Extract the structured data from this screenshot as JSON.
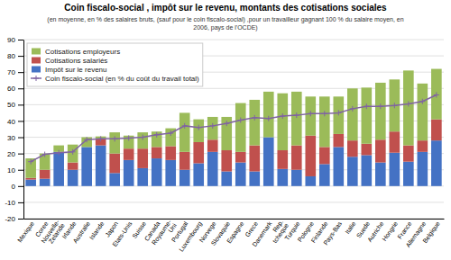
{
  "chart_data": {
    "type": "bar",
    "title": "Coin fiscalo-social , impôt sur le revenu, montants des cotisations sociales",
    "subtitle": [
      "(en moyenne, en % des salaires  bruts, (sauf pour le coin fiscalo-social) ,pour un travailleur gagnant 100 % du salaire moyen, en",
      "2006, pays de l'OCDE)"
    ],
    "categories": [
      "Mexique",
      "Coree",
      "Nouvelle-\nZelande",
      "Irlande",
      "Australie",
      "Islande",
      "Japon",
      "Etats-Unis",
      "Suisse",
      "Canada",
      "Royaume-\nUni",
      "Portugal",
      "Luxembourg",
      "Norvege",
      "Slovaquie",
      "Espagne",
      "Grece",
      "Danemark",
      "Rep.\ntcheque",
      "Turquie",
      "Pologne",
      "Finlande",
      "Pays-Bas",
      "Italie",
      "Suede",
      "Autriche",
      "Hongrie",
      "France",
      "Allemagne",
      "Belgique"
    ],
    "series": [
      {
        "name": "Impôt sur le revenu",
        "color": "#4472C4",
        "type": "bar",
        "values": [
          4.0,
          4.5,
          21.0,
          10.0,
          24.0,
          25.0,
          8.0,
          16.0,
          11.0,
          17.0,
          16.0,
          10.0,
          14.0,
          21.0,
          9.0,
          14.5,
          9.0,
          30.0,
          10.5,
          10.0,
          6.0,
          13.5,
          24.0,
          18.0,
          19.0,
          14.5,
          20.5,
          15.0,
          21.0,
          28.0
        ]
      },
      {
        "name": "Cotisations salariés",
        "color": "#C0504D",
        "type": "bar",
        "values": [
          1.0,
          5.5,
          0.0,
          4.5,
          0.0,
          4.0,
          12.0,
          7.0,
          12.0,
          7.0,
          8.5,
          11.0,
          13.0,
          7.5,
          13.0,
          6.5,
          16.0,
          0.0,
          11.5,
          15.0,
          25.0,
          10.5,
          8.0,
          10.0,
          7.0,
          14.0,
          13.0,
          10.0,
          7.0,
          13.0
        ]
      },
      {
        "name": "Cotisations employeurs",
        "color": "#9BBB59",
        "type": "bar",
        "values": [
          12.0,
          10.0,
          4.0,
          11.0,
          6.0,
          1.5,
          13.0,
          8.0,
          10.0,
          9.5,
          11.0,
          24.0,
          14.0,
          14.0,
          20.5,
          30.0,
          28.0,
          28.0,
          35.0,
          33.0,
          24.0,
          31.0,
          23.0,
          32.0,
          34.5,
          35.0,
          32.0,
          46.0,
          35.0,
          31.0
        ]
      },
      {
        "name": "Coin fiscalo-social (en % du coût du travail total)",
        "color": "#8064A2",
        "type": "line",
        "marker": "plus",
        "values": [
          15.0,
          19.5,
          20.5,
          21.0,
          28.5,
          29.0,
          29.0,
          29.5,
          30.0,
          31.5,
          32.5,
          37.0,
          36.0,
          37.0,
          38.5,
          40.5,
          42.0,
          41.5,
          43.0,
          43.5,
          44.5,
          44.5,
          45.0,
          47.5,
          49.0,
          49.0,
          49.5,
          50.5,
          52.0,
          56.0
        ]
      }
    ],
    "stacked": true,
    "ylim": [
      -20,
      90
    ],
    "yticks": [
      -20,
      -10,
      0,
      10,
      20,
      30,
      40,
      50,
      60,
      70,
      80,
      90
    ],
    "grid": true,
    "legend": "upper left"
  }
}
